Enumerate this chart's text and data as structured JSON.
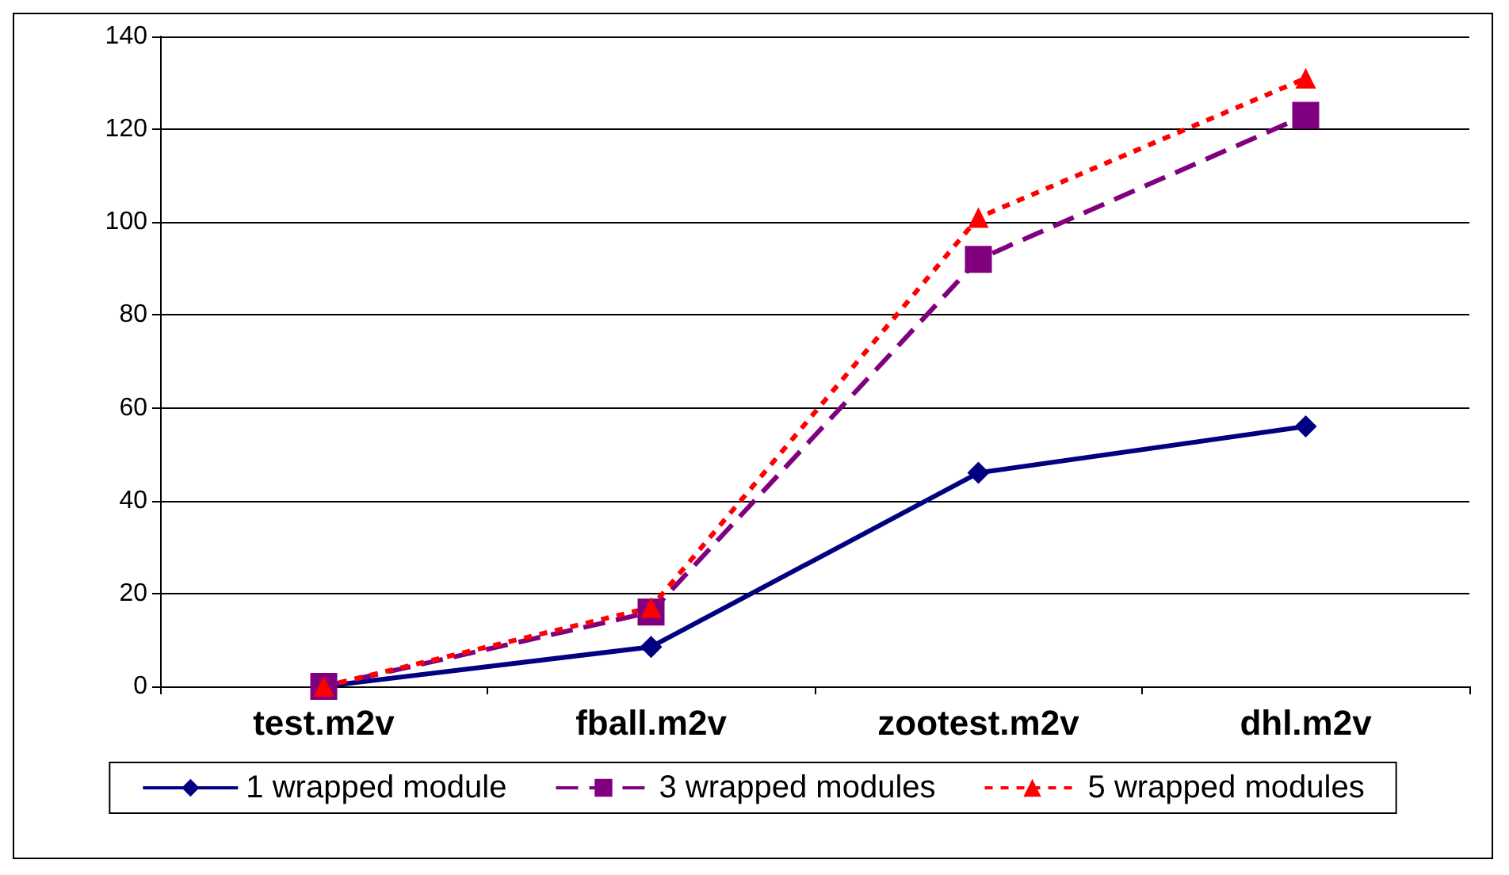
{
  "chart_data": {
    "type": "line",
    "categories": [
      "test.m2v",
      "fball.m2v",
      "zootest.m2v",
      "dhl.m2v"
    ],
    "series": [
      {
        "name": "1 wrapped module",
        "color": "#000080",
        "values": [
          0,
          8.5,
          46,
          56
        ],
        "marker": "diamond",
        "line_style": "solid"
      },
      {
        "name": "3 wrapped modules",
        "color": "#800080",
        "values": [
          0,
          16,
          92,
          123
        ],
        "marker": "square",
        "line_style": "dashed"
      },
      {
        "name": "5 wrapped modules",
        "color": "#ff0000",
        "values": [
          0,
          17,
          101,
          131
        ],
        "marker": "triangle",
        "line_style": "dotted"
      }
    ],
    "ylim": [
      0,
      140
    ],
    "yticks": [
      0,
      20,
      40,
      60,
      80,
      100,
      120,
      140
    ],
    "grid": "y",
    "legend": "bottom"
  }
}
